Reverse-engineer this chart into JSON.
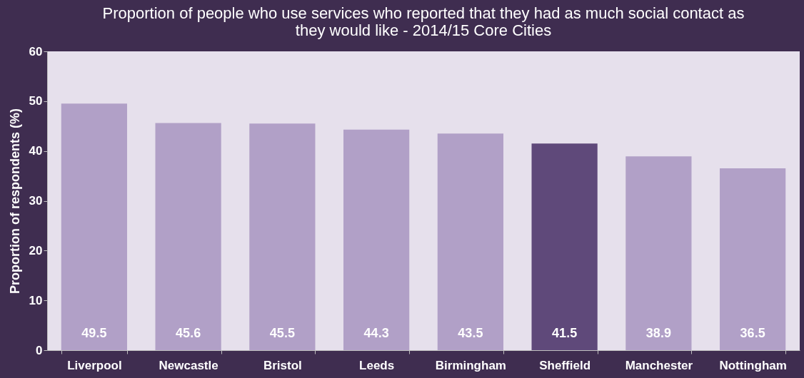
{
  "chart_data": {
    "type": "bar",
    "title": "Proportion of people who use services who reported that they had as much social contact as they would like - 2014/15 Core Cities",
    "ylabel": "Proportion of respondents (%)",
    "categories": [
      "Liverpool",
      "Newcastle",
      "Bristol",
      "Leeds",
      "Birmingham",
      "Sheffield",
      "Manchester",
      "Nottingham"
    ],
    "values": [
      49.5,
      45.6,
      45.5,
      44.3,
      43.5,
      41.5,
      38.9,
      36.5
    ],
    "colors": [
      "#b1a0c7",
      "#b1a0c7",
      "#b1a0c7",
      "#b1a0c7",
      "#b1a0c7",
      "#5f497a",
      "#b1a0c7",
      "#b1a0c7"
    ],
    "ylim": [
      0,
      60
    ],
    "yticks": [
      0,
      10,
      20,
      30,
      40,
      50,
      60
    ],
    "grid": false,
    "data_labels": true
  }
}
